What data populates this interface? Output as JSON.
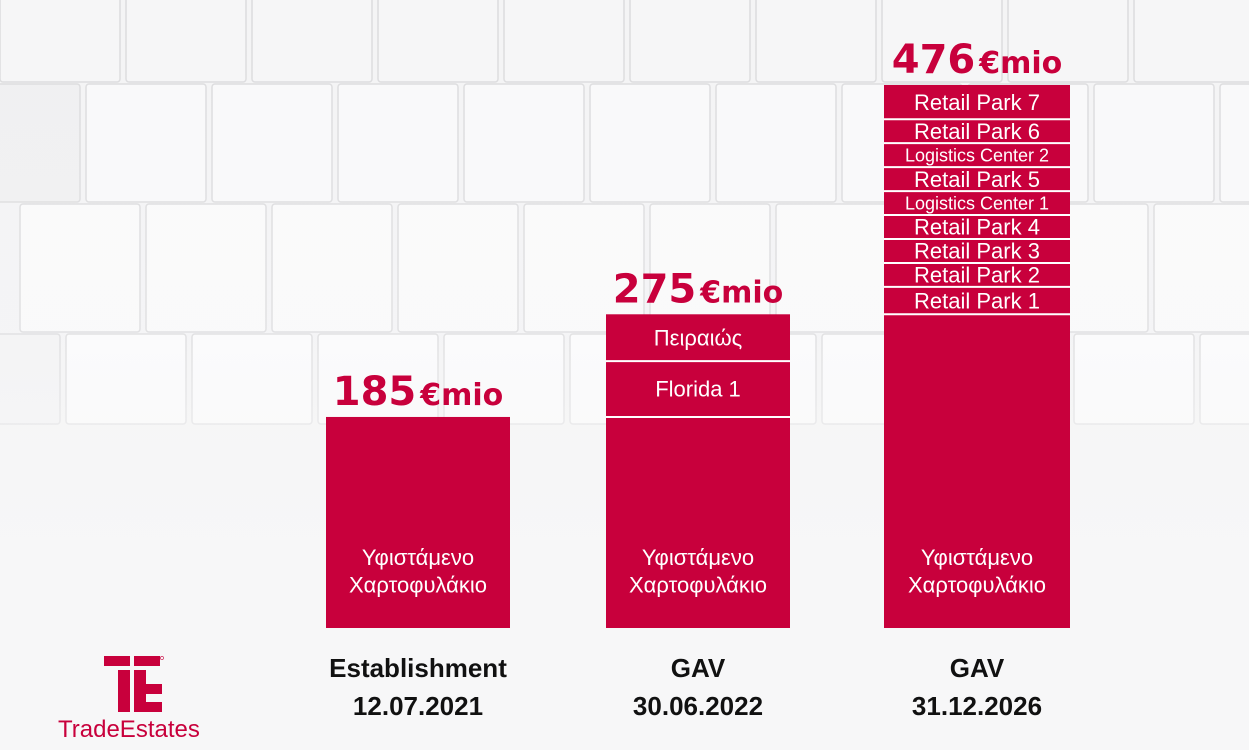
{
  "brand": {
    "name": "TradeEstates",
    "logo_icon": "tradeestates-te-logo-icon",
    "accent_color": "#c8003c"
  },
  "chart_data": {
    "type": "bar",
    "stacked": true,
    "unit": "€mio",
    "totals_unit_text": "€mio",
    "categories": [
      {
        "line1": "Establishment",
        "line2": "12.07.2021"
      },
      {
        "line1": "GAV",
        "line2": "30.06.2022"
      },
      {
        "line1": "GAV",
        "line2": "31.12.2026"
      }
    ],
    "totals": [
      185,
      275,
      476
    ],
    "total_labels": [
      "185",
      "275",
      "476"
    ],
    "ylim": [
      0,
      476
    ],
    "bar_color": "#c8003c",
    "segment_separator_color": "#ffffff",
    "bars": [
      {
        "segments": [
          {
            "label": [
              "Υφιστάμενο",
              "Χαρτοφυλάκιο"
            ],
            "value": 185
          }
        ]
      },
      {
        "segments": [
          {
            "label": [
              "Υφιστάμενο",
              "Χαρτοφυλάκιο"
            ],
            "value": 185
          },
          {
            "label": [
              "Florida 1"
            ],
            "value": 49
          },
          {
            "label": [
              "Πειραιώς"
            ],
            "value": 41
          }
        ]
      },
      {
        "segments": [
          {
            "label": [
              "Υφιστάμενο",
              "Χαρτοφυλάκιο"
            ],
            "value": 275
          },
          {
            "label": [
              "Retail Park 1"
            ],
            "value": 24
          },
          {
            "label": [
              "Retail Park 2"
            ],
            "value": 21
          },
          {
            "label": [
              "Retail Park 3"
            ],
            "value": 21
          },
          {
            "label": [
              "Retail Park 4"
            ],
            "value": 21
          },
          {
            "label": [
              "Logistics Center 1"
            ],
            "value": 21
          },
          {
            "label": [
              "Retail Park 5"
            ],
            "value": 21
          },
          {
            "label": [
              "Logistics Center 2"
            ],
            "value": 21
          },
          {
            "label": [
              "Retail Park 6"
            ],
            "value": 21
          },
          {
            "label": [
              "Retail Park 7"
            ],
            "value": 30
          }
        ]
      }
    ],
    "grid": false,
    "legend": "none"
  }
}
